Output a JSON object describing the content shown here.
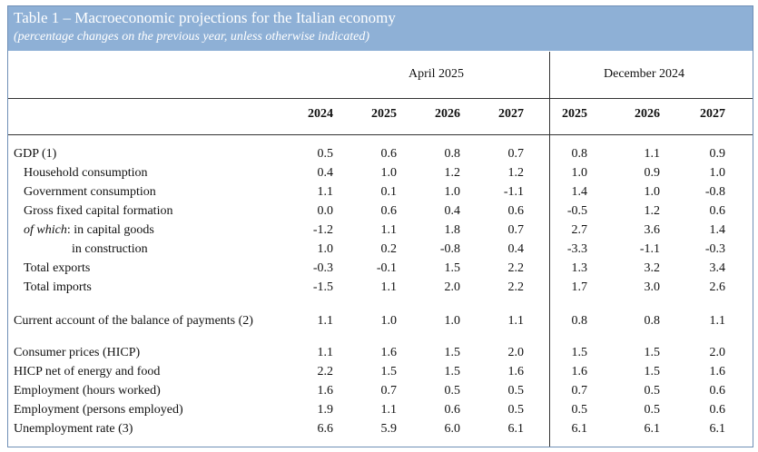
{
  "title": "Table 1 – Macroeconomic projections for the Italian economy",
  "subtitle": "(percentage changes on the previous year, unless otherwise indicated)",
  "groups": [
    "April 2025",
    "December 2024"
  ],
  "years": [
    "2024",
    "2025",
    "2026",
    "2027",
    "2025",
    "2026",
    "2027"
  ],
  "rows": [
    {
      "label": "GDP (1)",
      "prefix": "",
      "values": [
        "0.5",
        "0.6",
        "0.8",
        "0.7",
        "0.8",
        "1.1",
        "0.9"
      ]
    },
    {
      "label": "Household consumption",
      "prefix": "",
      "values": [
        "0.4",
        "1.0",
        "1.2",
        "1.2",
        "1.0",
        "0.9",
        "1.0"
      ]
    },
    {
      "label": "Government consumption",
      "prefix": "",
      "values": [
        "1.1",
        "0.1",
        "1.0",
        "-1.1",
        "1.4",
        "1.0",
        "-0.8"
      ]
    },
    {
      "label": "Gross fixed capital formation",
      "prefix": "",
      "values": [
        "0.0",
        "0.6",
        "0.4",
        "0.6",
        "-0.5",
        "1.2",
        "0.6"
      ]
    },
    {
      "label": ": in capital goods",
      "prefix": "of which",
      "values": [
        "-1.2",
        "1.1",
        "1.8",
        "0.7",
        "2.7",
        "3.6",
        "1.4"
      ]
    },
    {
      "label": "in construction",
      "prefix": "",
      "values": [
        "1.0",
        "0.2",
        "-0.8",
        "0.4",
        "-3.3",
        "-1.1",
        "-0.3"
      ]
    },
    {
      "label": "Total exports",
      "prefix": "",
      "values": [
        "-0.3",
        "-0.1",
        "1.5",
        "2.2",
        "1.3",
        "3.2",
        "3.4"
      ]
    },
    {
      "label": "Total imports",
      "prefix": "",
      "values": [
        "-1.5",
        "1.1",
        "2.0",
        "2.2",
        "1.7",
        "3.0",
        "2.6"
      ]
    },
    {
      "label": "Current account of the balance of payments (2)",
      "prefix": "",
      "values": [
        "1.1",
        "1.0",
        "1.0",
        "1.1",
        "0.8",
        "0.8",
        "1.1"
      ]
    },
    {
      "label": "Consumer prices (HICP)",
      "prefix": "",
      "values": [
        "1.1",
        "1.6",
        "1.5",
        "2.0",
        "1.5",
        "1.5",
        "2.0"
      ]
    },
    {
      "label": "HICP net of energy and food",
      "prefix": "",
      "values": [
        "2.2",
        "1.5",
        "1.5",
        "1.6",
        "1.6",
        "1.5",
        "1.6"
      ]
    },
    {
      "label": "Employment (hours worked)",
      "prefix": "",
      "values": [
        "1.6",
        "0.7",
        "0.5",
        "0.5",
        "0.7",
        "0.5",
        "0.6"
      ]
    },
    {
      "label": "Employment (persons employed)",
      "prefix": "",
      "values": [
        "1.9",
        "1.1",
        "0.6",
        "0.5",
        "0.5",
        "0.5",
        "0.6"
      ]
    },
    {
      "label": "Unemployment rate (3)",
      "prefix": "",
      "values": [
        "6.6",
        "5.9",
        "6.0",
        "6.1",
        "6.1",
        "6.1",
        "6.1"
      ]
    }
  ]
}
